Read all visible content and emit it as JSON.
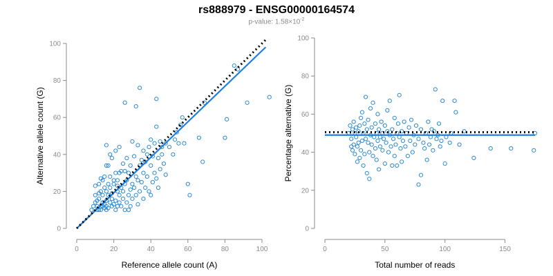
{
  "header": {
    "title": "rs888979 - ENSG00000164574",
    "pvalue_prefix": "p-value: 1.58×10",
    "pvalue_exp": "-2"
  },
  "colors": {
    "points": "#2a8ad6",
    "fit_line": "#1f7fe0",
    "expected_line": "#000000",
    "axis": "#8a8a8a"
  },
  "chart_data": [
    {
      "type": "scatter",
      "title": "",
      "xlabel": "Reference allele count (A)",
      "ylabel": "Alternative allele count (G)",
      "xlim": [
        0,
        100
      ],
      "ylim": [
        0,
        100
      ],
      "xticks": [
        0,
        20,
        40,
        60,
        80,
        100
      ],
      "yticks": [
        0,
        20,
        40,
        60,
        80,
        100
      ],
      "grid": false,
      "lines": [
        {
          "style": "solid",
          "role": "fitted",
          "points": [
            [
              0,
              0
            ],
            [
              102,
              98
            ]
          ]
        },
        {
          "style": "dotted",
          "role": "expected",
          "points": [
            [
              0,
              0
            ],
            [
              102,
              102
            ]
          ]
        }
      ],
      "points": [
        [
          8,
          10
        ],
        [
          9,
          12
        ],
        [
          10,
          14
        ],
        [
          10,
          18
        ],
        [
          10,
          23
        ],
        [
          11,
          10
        ],
        [
          11,
          12
        ],
        [
          11,
          15
        ],
        [
          12,
          16
        ],
        [
          12,
          10
        ],
        [
          12,
          19
        ],
        [
          12,
          24
        ],
        [
          13,
          10
        ],
        [
          13,
          12
        ],
        [
          13,
          20
        ],
        [
          13,
          27
        ],
        [
          14,
          12
        ],
        [
          14,
          14
        ],
        [
          14,
          18
        ],
        [
          14,
          26
        ],
        [
          15,
          11
        ],
        [
          15,
          13
        ],
        [
          15,
          22
        ],
        [
          15,
          28
        ],
        [
          16,
          10
        ],
        [
          16,
          12
        ],
        [
          16,
          15
        ],
        [
          16,
          20
        ],
        [
          16,
          34
        ],
        [
          16,
          45
        ],
        [
          17,
          11
        ],
        [
          17,
          18
        ],
        [
          17,
          24
        ],
        [
          17,
          34
        ],
        [
          18,
          14
        ],
        [
          18,
          22
        ],
        [
          18,
          28
        ],
        [
          18,
          40
        ],
        [
          19,
          12
        ],
        [
          19,
          16
        ],
        [
          19,
          19
        ],
        [
          19,
          38
        ],
        [
          20,
          13
        ],
        [
          20,
          24
        ],
        [
          20,
          26
        ],
        [
          21,
          10
        ],
        [
          21,
          15
        ],
        [
          21,
          30
        ],
        [
          21,
          42
        ],
        [
          22,
          12
        ],
        [
          22,
          20
        ],
        [
          22,
          23
        ],
        [
          22,
          26
        ],
        [
          23,
          14
        ],
        [
          23,
          18
        ],
        [
          23,
          30
        ],
        [
          23,
          44
        ],
        [
          24,
          12
        ],
        [
          24,
          22
        ],
        [
          24,
          31
        ],
        [
          25,
          16
        ],
        [
          25,
          20
        ],
        [
          25,
          35
        ],
        [
          26,
          10
        ],
        [
          26,
          24
        ],
        [
          26,
          31
        ],
        [
          26,
          68
        ],
        [
          27,
          14
        ],
        [
          27,
          26
        ],
        [
          27,
          38
        ],
        [
          28,
          10
        ],
        [
          28,
          18
        ],
        [
          28,
          30
        ],
        [
          29,
          12
        ],
        [
          29,
          21
        ],
        [
          29,
          34
        ],
        [
          30,
          16
        ],
        [
          30,
          24
        ],
        [
          30,
          47
        ],
        [
          31,
          22
        ],
        [
          31,
          39
        ],
        [
          32,
          18
        ],
        [
          32,
          28
        ],
        [
          32,
          66
        ],
        [
          33,
          13
        ],
        [
          33,
          26
        ],
        [
          33,
          45
        ],
        [
          34,
          20
        ],
        [
          34,
          34
        ],
        [
          34,
          76
        ],
        [
          35,
          25
        ],
        [
          35,
          37
        ],
        [
          36,
          16
        ],
        [
          36,
          30
        ],
        [
          36,
          42
        ],
        [
          37,
          22
        ],
        [
          37,
          36
        ],
        [
          38,
          28
        ],
        [
          38,
          40
        ],
        [
          39,
          20
        ],
        [
          39,
          44
        ],
        [
          40,
          18
        ],
        [
          40,
          34
        ],
        [
          40,
          48
        ],
        [
          41,
          25
        ],
        [
          41,
          39
        ],
        [
          42,
          30
        ],
        [
          42,
          46
        ],
        [
          43,
          27
        ],
        [
          43,
          55
        ],
        [
          43,
          70
        ],
        [
          44,
          38
        ],
        [
          44,
          22
        ],
        [
          45,
          32
        ],
        [
          45,
          47
        ],
        [
          46,
          40
        ],
        [
          46,
          44
        ],
        [
          47,
          35
        ],
        [
          48,
          46
        ],
        [
          48,
          29
        ],
        [
          50,
          44
        ],
        [
          52,
          40
        ],
        [
          53,
          48
        ],
        [
          54,
          52
        ],
        [
          55,
          46
        ],
        [
          56,
          56
        ],
        [
          57,
          60
        ],
        [
          58,
          46
        ],
        [
          60,
          24
        ],
        [
          61,
          18
        ],
        [
          66,
          49
        ],
        [
          68,
          36
        ],
        [
          69,
          68
        ],
        [
          80,
          49
        ],
        [
          81,
          59
        ],
        [
          85,
          88
        ],
        [
          87,
          86
        ],
        [
          92,
          68
        ],
        [
          104,
          71
        ]
      ]
    },
    {
      "type": "scatter",
      "title": "",
      "xlabel": "Total number of reads",
      "ylabel": "Percentage alternative (G)",
      "xlim": [
        0,
        175
      ],
      "ylim": [
        0,
        100
      ],
      "xticks": [
        0,
        50,
        100,
        150
      ],
      "yticks": [
        0,
        20,
        40,
        60,
        80,
        100
      ],
      "grid": false,
      "lines": [
        {
          "style": "solid",
          "role": "fitted",
          "points": [
            [
              0,
              49
            ],
            [
              175,
              49
            ]
          ]
        },
        {
          "style": "dotted",
          "role": "expected",
          "points": [
            [
              0,
              50.5
            ],
            [
              175,
              50.5
            ]
          ]
        }
      ],
      "points": [
        [
          20,
          50
        ],
        [
          21,
          54
        ],
        [
          22,
          47
        ],
        [
          22,
          43
        ],
        [
          23,
          52
        ],
        [
          23,
          41
        ],
        [
          24,
          56
        ],
        [
          24,
          44
        ],
        [
          25,
          50
        ],
        [
          25,
          39
        ],
        [
          26,
          48
        ],
        [
          26,
          53
        ],
        [
          27,
          43
        ],
        [
          27,
          35
        ],
        [
          28,
          45
        ],
        [
          28,
          51
        ],
        [
          29,
          54
        ],
        [
          29,
          37
        ],
        [
          30,
          41
        ],
        [
          30,
          58
        ],
        [
          31,
          46
        ],
        [
          31,
          61
        ],
        [
          32,
          50
        ],
        [
          32,
          33
        ],
        [
          33,
          55
        ],
        [
          33,
          39
        ],
        [
          34,
          47
        ],
        [
          34,
          69
        ],
        [
          35,
          52
        ],
        [
          35,
          29
        ],
        [
          36,
          45
        ],
        [
          36,
          57
        ],
        [
          37,
          40
        ],
        [
          37,
          26
        ],
        [
          38,
          49
        ],
        [
          38,
          63
        ],
        [
          39,
          44
        ],
        [
          39,
          53
        ],
        [
          40,
          38
        ],
        [
          40,
          66
        ],
        [
          41,
          48
        ],
        [
          42,
          42
        ],
        [
          42,
          55
        ],
        [
          43,
          50
        ],
        [
          43,
          36
        ],
        [
          44,
          46
        ],
        [
          44,
          60
        ],
        [
          45,
          52
        ],
        [
          45,
          31
        ],
        [
          46,
          43
        ],
        [
          46,
          48
        ],
        [
          47,
          56
        ],
        [
          48,
          41
        ],
        [
          48,
          50
        ],
        [
          49,
          47
        ],
        [
          50,
          54
        ],
        [
          50,
          34
        ],
        [
          51,
          45
        ],
        [
          52,
          51
        ],
        [
          52,
          62
        ],
        [
          53,
          40
        ],
        [
          54,
          49
        ],
        [
          54,
          67
        ],
        [
          55,
          43
        ],
        [
          56,
          52
        ],
        [
          56,
          33
        ],
        [
          57,
          47
        ],
        [
          58,
          58
        ],
        [
          58,
          38
        ],
        [
          59,
          44
        ],
        [
          60,
          50
        ],
        [
          60,
          33
        ],
        [
          61,
          55
        ],
        [
          62,
          48
        ],
        [
          62,
          70
        ],
        [
          63,
          42
        ],
        [
          64,
          51
        ],
        [
          64,
          35
        ],
        [
          65,
          46
        ],
        [
          66,
          56
        ],
        [
          67,
          43
        ],
        [
          68,
          50
        ],
        [
          69,
          38
        ],
        [
          70,
          53
        ],
        [
          71,
          46
        ],
        [
          72,
          57
        ],
        [
          73,
          40
        ],
        [
          74,
          49
        ],
        [
          75,
          44
        ],
        [
          76,
          54
        ],
        [
          78,
          23
        ],
        [
          78,
          47
        ],
        [
          80,
          52
        ],
        [
          80,
          28
        ],
        [
          82,
          45
        ],
        [
          83,
          42
        ],
        [
          84,
          50
        ],
        [
          85,
          36
        ],
        [
          86,
          56
        ],
        [
          87,
          44
        ],
        [
          88,
          48
        ],
        [
          89,
          52
        ],
        [
          90,
          41
        ],
        [
          91,
          51
        ],
        [
          92,
          73
        ],
        [
          93,
          47
        ],
        [
          94,
          49
        ],
        [
          95,
          55
        ],
        [
          96,
          43
        ],
        [
          97,
          46
        ],
        [
          98,
          67
        ],
        [
          100,
          34
        ],
        [
          101,
          48
        ],
        [
          104,
          45
        ],
        [
          105,
          50
        ],
        [
          108,
          67
        ],
        [
          109,
          61
        ],
        [
          112,
          44
        ],
        [
          116,
          51
        ],
        [
          124,
          37
        ],
        [
          138,
          42
        ],
        [
          155,
          42
        ],
        [
          174,
          41
        ],
        [
          175,
          50
        ]
      ]
    }
  ]
}
